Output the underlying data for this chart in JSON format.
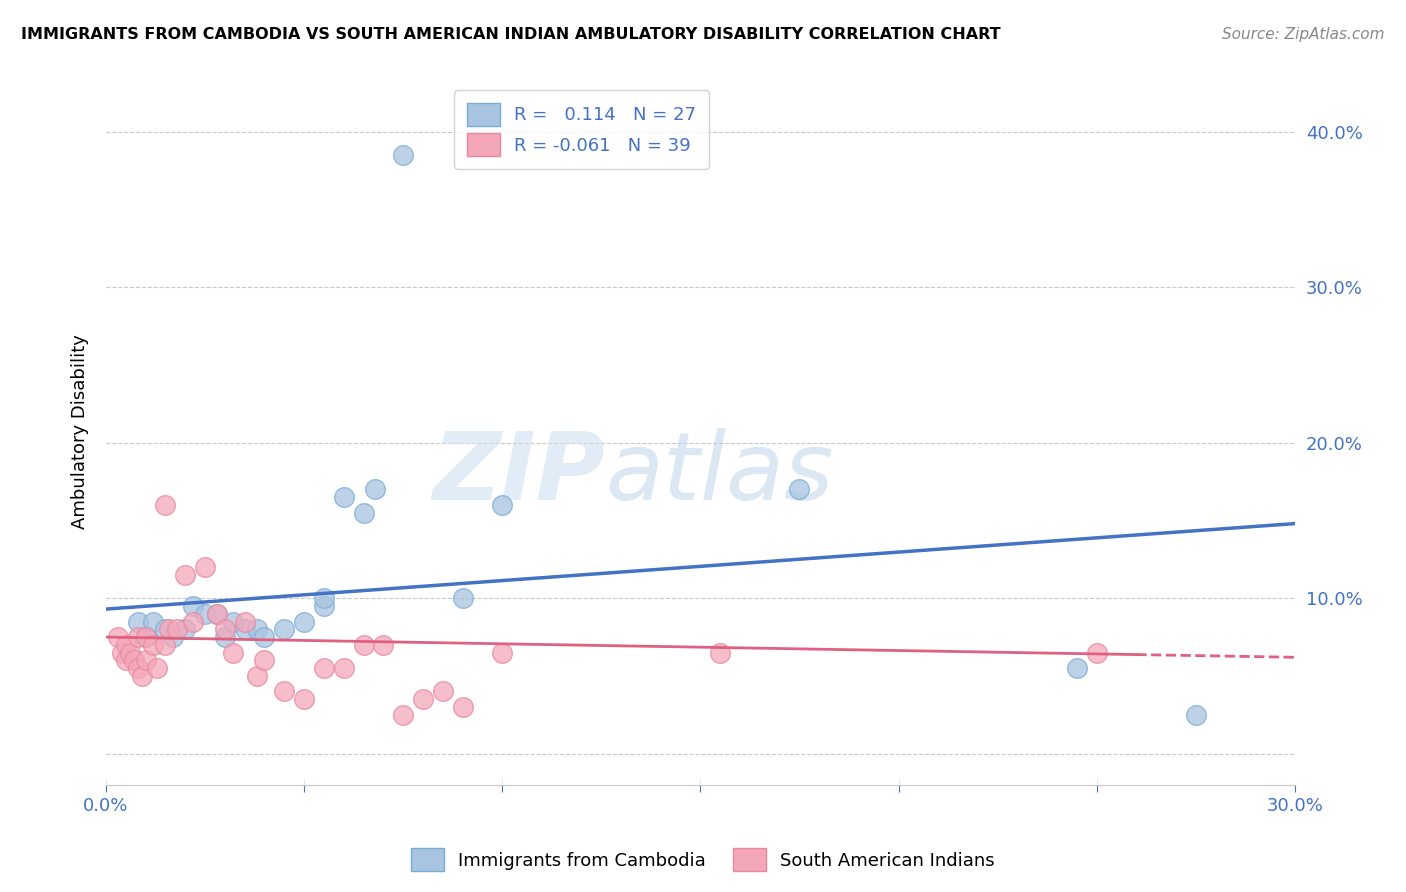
{
  "title": "IMMIGRANTS FROM CAMBODIA VS SOUTH AMERICAN INDIAN AMBULATORY DISABILITY CORRELATION CHART",
  "source": "Source: ZipAtlas.com",
  "ylabel": "Ambulatory Disability",
  "xlim": [
    0.0,
    0.3
  ],
  "ylim": [
    -0.02,
    0.435
  ],
  "xticks": [
    0.0,
    0.05,
    0.1,
    0.15,
    0.2,
    0.25,
    0.3
  ],
  "xtick_labels": [
    "0.0%",
    "",
    "",
    "",
    "",
    "",
    "30.0%"
  ],
  "yticks_right": [
    0.0,
    0.1,
    0.2,
    0.3,
    0.4
  ],
  "ytick_right_labels": [
    "",
    "10.0%",
    "20.0%",
    "30.0%",
    "40.0%"
  ],
  "blue_color": "#a8c4e0",
  "pink_color": "#f4a7b9",
  "blue_line_color": "#4472c4",
  "pink_line_color": "#e06080",
  "legend_R1": "0.114",
  "legend_N1": "27",
  "legend_R2": "-0.061",
  "legend_N2": "39",
  "watermark_zip": "ZIP",
  "watermark_atlas": "atlas",
  "blue_points_x": [
    0.075,
    0.008,
    0.01,
    0.012,
    0.015,
    0.017,
    0.02,
    0.022,
    0.025,
    0.028,
    0.03,
    0.032,
    0.035,
    0.038,
    0.04,
    0.045,
    0.05,
    0.055,
    0.055,
    0.06,
    0.065,
    0.068,
    0.09,
    0.1,
    0.175,
    0.245,
    0.275
  ],
  "blue_points_y": [
    0.385,
    0.085,
    0.075,
    0.085,
    0.08,
    0.075,
    0.08,
    0.095,
    0.09,
    0.09,
    0.075,
    0.085,
    0.08,
    0.08,
    0.075,
    0.08,
    0.085,
    0.095,
    0.1,
    0.165,
    0.155,
    0.17,
    0.1,
    0.16,
    0.17,
    0.055,
    0.025
  ],
  "pink_points_x": [
    0.003,
    0.004,
    0.005,
    0.005,
    0.006,
    0.007,
    0.008,
    0.008,
    0.009,
    0.01,
    0.01,
    0.012,
    0.013,
    0.015,
    0.015,
    0.016,
    0.018,
    0.02,
    0.022,
    0.025,
    0.028,
    0.03,
    0.032,
    0.035,
    0.038,
    0.04,
    0.045,
    0.05,
    0.055,
    0.06,
    0.065,
    0.07,
    0.075,
    0.08,
    0.085,
    0.09,
    0.1,
    0.155,
    0.25
  ],
  "pink_points_y": [
    0.075,
    0.065,
    0.07,
    0.06,
    0.065,
    0.06,
    0.075,
    0.055,
    0.05,
    0.075,
    0.06,
    0.07,
    0.055,
    0.16,
    0.07,
    0.08,
    0.08,
    0.115,
    0.085,
    0.12,
    0.09,
    0.08,
    0.065,
    0.085,
    0.05,
    0.06,
    0.04,
    0.035,
    0.055,
    0.055,
    0.07,
    0.07,
    0.025,
    0.035,
    0.04,
    0.03,
    0.065,
    0.065,
    0.065
  ],
  "blue_trend_x0": 0.0,
  "blue_trend_y0": 0.093,
  "blue_trend_x1": 0.3,
  "blue_trend_y1": 0.148,
  "pink_trend_x0": 0.0,
  "pink_trend_y0": 0.075,
  "pink_trend_x1": 0.3,
  "pink_trend_y1": 0.062
}
